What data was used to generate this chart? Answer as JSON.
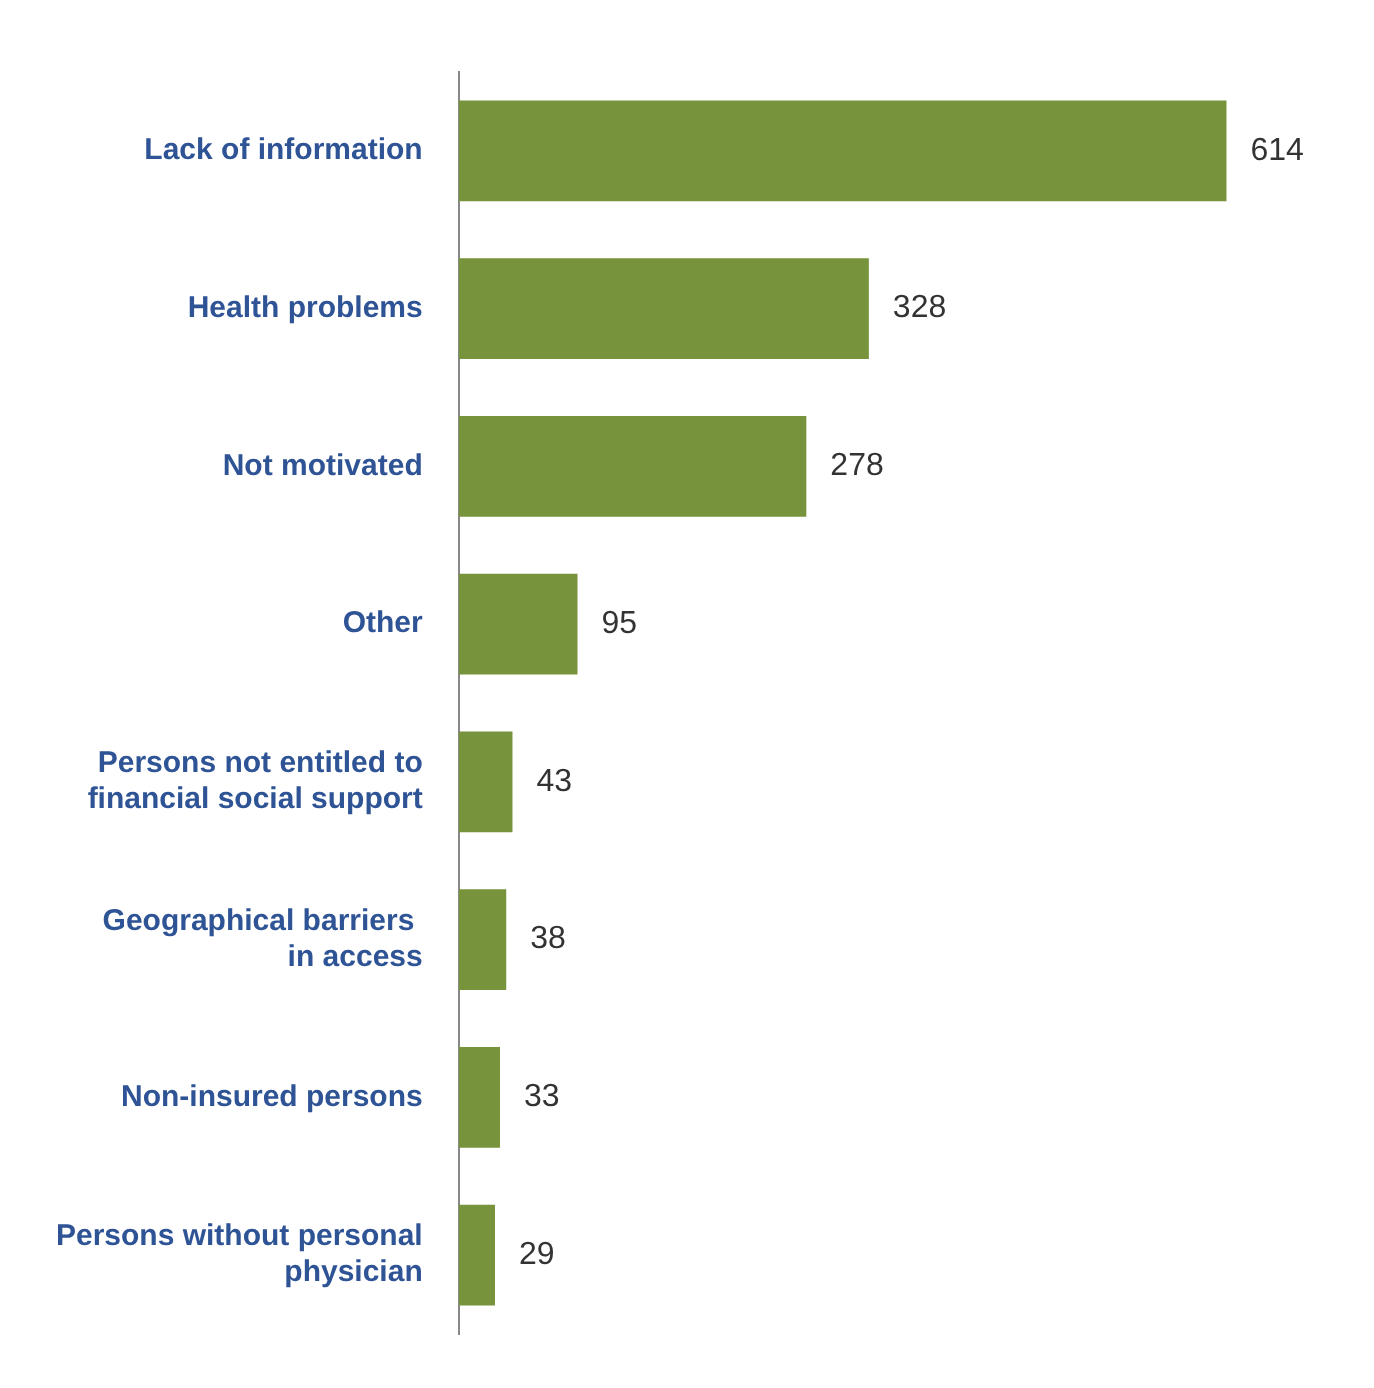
{
  "chart_data": {
    "type": "bar",
    "orientation": "horizontal",
    "categories": [
      "Lack of information",
      "Health problems",
      "Not motivated",
      "Other",
      "Persons not entitled to financial social support",
      "Geographical barriers  in access",
      "Non-insured persons",
      "Persons without personal physician"
    ],
    "values": [
      614,
      328,
      278,
      95,
      43,
      38,
      33,
      29
    ],
    "color": "#77933c",
    "data_labels": true,
    "tick_labels": "y"
  }
}
